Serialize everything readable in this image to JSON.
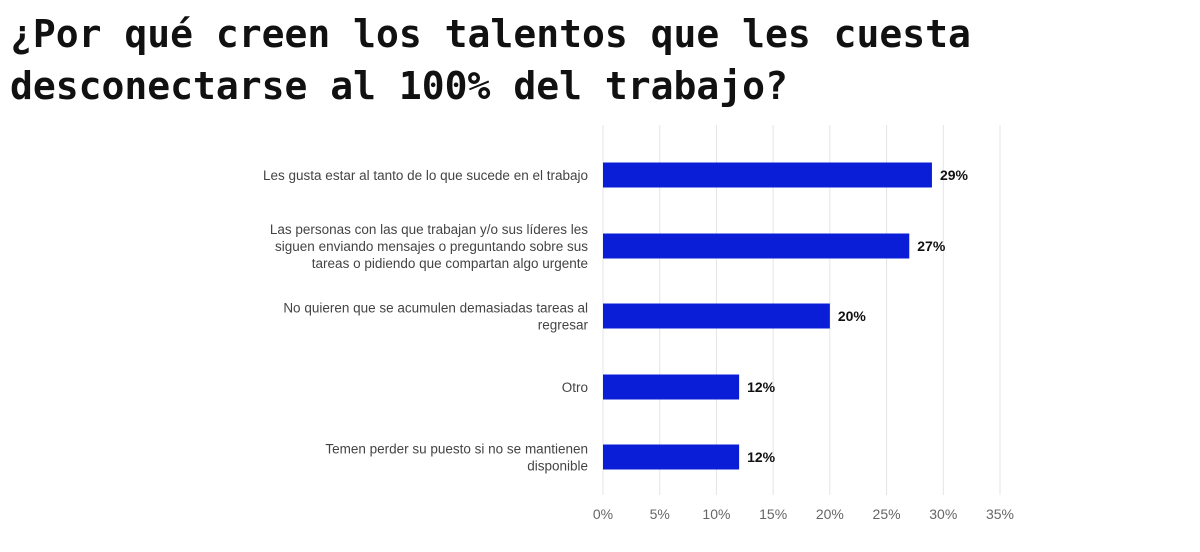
{
  "chart_data": {
    "type": "bar",
    "orientation": "horizontal",
    "title": "¿Por qué creen los talentos que les cuesta desconectarse al 100% del trabajo?",
    "categories": [
      [
        "Les gusta estar al tanto de lo que sucede en el trabajo"
      ],
      [
        "Las personas con las que trabajan y/o sus líderes les",
        "siguen enviando mensajes o preguntando sobre sus",
        "tareas o pidiendo que  compartan algo urgente"
      ],
      [
        "No quieren que se acumulen demasiadas tareas al",
        "regresar"
      ],
      [
        "Otro"
      ],
      [
        "Temen perder su puesto si no se mantienen",
        "disponible"
      ]
    ],
    "values": [
      29,
      27,
      20,
      12,
      12
    ],
    "data_labels": [
      "29%",
      "27%",
      "20%",
      "12%",
      "12%"
    ],
    "xlim": [
      0,
      35
    ],
    "x_ticks": [
      "0%",
      "5%",
      "10%",
      "15%",
      "20%",
      "25%",
      "30%",
      "35%"
    ],
    "xlabel": "",
    "ylabel": "",
    "grid": "vertical",
    "bar_color": "#0a1ed8"
  }
}
